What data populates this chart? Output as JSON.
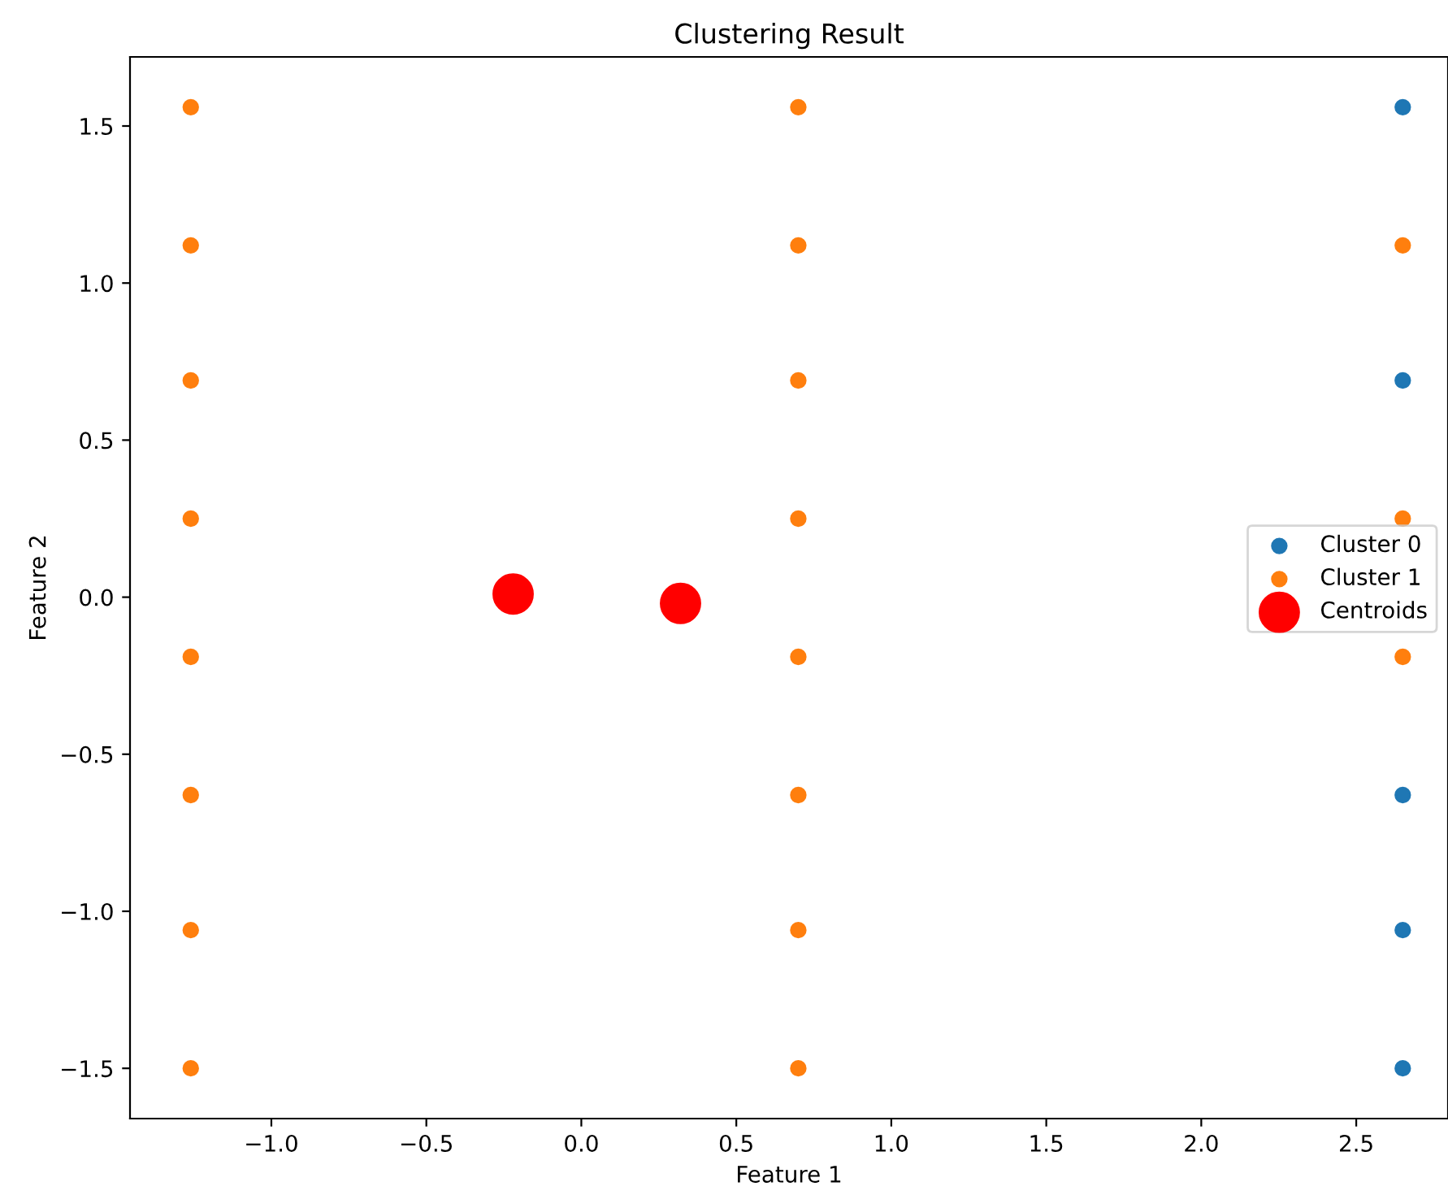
{
  "chart_data": {
    "type": "scatter",
    "title": "Clustering Result",
    "xlabel": "Feature 1",
    "ylabel": "Feature 2",
    "xlim": [
      -1.456,
      2.796
    ],
    "ylim": [
      -1.66,
      1.72
    ],
    "xticks": [
      {
        "value": -1.0,
        "label": "−1.0"
      },
      {
        "value": -0.5,
        "label": "−0.5"
      },
      {
        "value": 0.0,
        "label": "0.0"
      },
      {
        "value": 0.5,
        "label": "0.5"
      },
      {
        "value": 1.0,
        "label": "1.0"
      },
      {
        "value": 1.5,
        "label": "1.5"
      },
      {
        "value": 2.0,
        "label": "2.0"
      },
      {
        "value": 2.5,
        "label": "2.5"
      }
    ],
    "yticks": [
      {
        "value": -1.5,
        "label": "−1.5"
      },
      {
        "value": -1.0,
        "label": "−1.0"
      },
      {
        "value": -0.5,
        "label": "−0.5"
      },
      {
        "value": 0.0,
        "label": "0.0"
      },
      {
        "value": 0.5,
        "label": "0.5"
      },
      {
        "value": 1.0,
        "label": "1.0"
      },
      {
        "value": 1.5,
        "label": "1.5"
      }
    ],
    "grid": false,
    "legend": "right",
    "marker": "circle",
    "series": [
      {
        "name": "Cluster 0",
        "color": "#1f77b4",
        "x": [
          2.65,
          2.65,
          2.65,
          2.65,
          2.65
        ],
        "values": [
          1.56,
          0.69,
          -0.63,
          -1.06,
          -1.5
        ]
      },
      {
        "name": "Cluster 1",
        "color": "#ff7f0e",
        "x": [
          -1.26,
          -1.26,
          -1.26,
          -1.26,
          -1.26,
          -1.26,
          -1.26,
          -1.26,
          0.7,
          0.7,
          0.7,
          0.7,
          0.7,
          0.7,
          0.7,
          0.7,
          2.65,
          2.65,
          2.65
        ],
        "values": [
          1.56,
          1.12,
          0.69,
          0.25,
          -0.19,
          -0.63,
          -1.06,
          -1.5,
          1.56,
          1.12,
          0.69,
          0.25,
          -0.19,
          -0.63,
          -1.06,
          -1.5,
          1.12,
          0.25,
          -0.19
        ]
      },
      {
        "name": "Centroids",
        "color": "#ff0000",
        "x": [
          -0.22,
          0.32
        ],
        "values": [
          0.01,
          -0.02
        ]
      }
    ]
  }
}
